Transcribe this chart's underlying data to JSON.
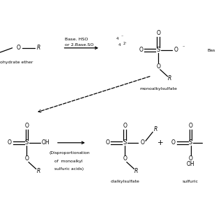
{
  "bg_color": "#ffffff",
  "text_color": "#000000",
  "line_color": "#000000",
  "figsize": [
    3.2,
    3.2
  ],
  "dpi": 100,
  "xlim": [
    0,
    10
  ],
  "ylim": [
    0,
    10
  ]
}
